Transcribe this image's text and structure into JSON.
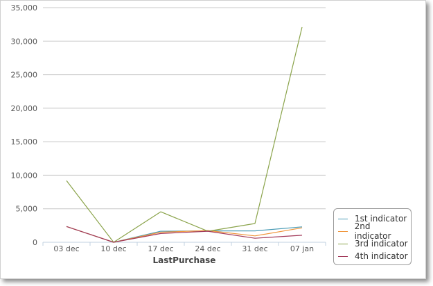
{
  "chart_data": {
    "type": "line",
    "xlabel": "LastPurchase",
    "ylabel": "",
    "categories": [
      "03 dec",
      "10 dec",
      "17 dec",
      "24 dec",
      "31 dec",
      "07 jan"
    ],
    "ylim": [
      0,
      35000
    ],
    "yticks": [
      0,
      5000,
      10000,
      15000,
      20000,
      25000,
      30000,
      35000
    ],
    "ytick_labels": [
      "0",
      "5,000",
      "10,000",
      "15,000",
      "20,000",
      "25,000",
      "30,000",
      "35,000"
    ],
    "grid": true,
    "legend_position": "bottom-right",
    "series": [
      {
        "name": "1st indicator",
        "color": "#4a9bb5",
        "values": [
          2350,
          0,
          1650,
          1700,
          1700,
          2300
        ]
      },
      {
        "name": "2nd indicator",
        "color": "#f0963c",
        "values": [
          2350,
          0,
          1500,
          1750,
          950,
          2150
        ]
      },
      {
        "name": "3rd indicator",
        "color": "#8aa34a",
        "values": [
          9200,
          0,
          4550,
          1650,
          2800,
          32100
        ]
      },
      {
        "name": "4th indicator",
        "color": "#a33a5a",
        "values": [
          2350,
          0,
          1300,
          1650,
          600,
          1050
        ]
      }
    ]
  }
}
